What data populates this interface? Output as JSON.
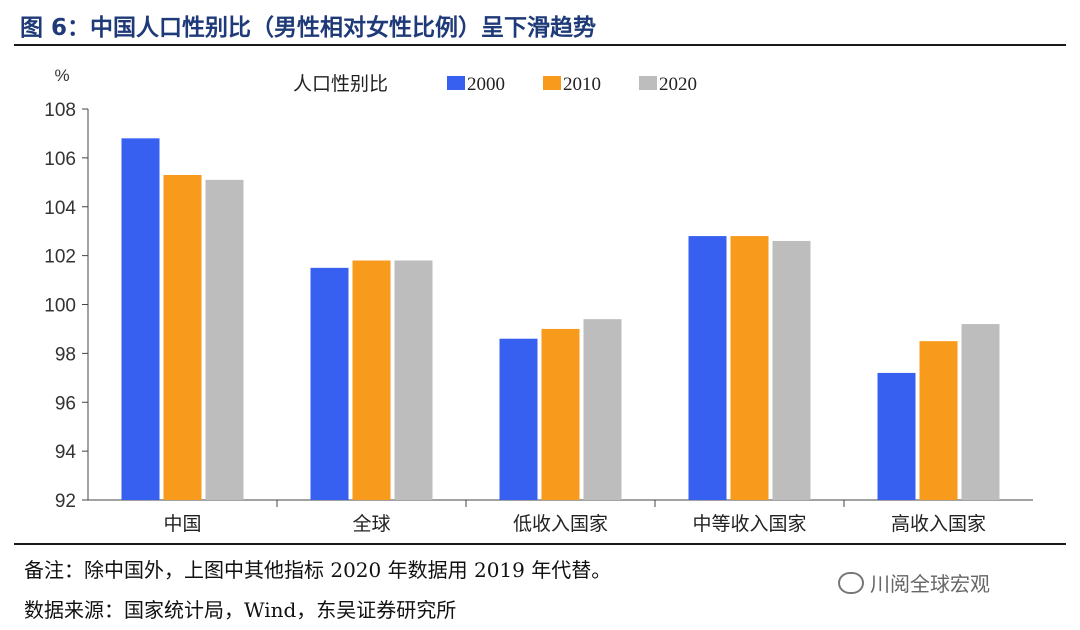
{
  "title": "图 6：中国人口性别比（男性相对女性比例）呈下滑趋势",
  "notes": {
    "remark": "备注：除中国外，上图中其他指标 2020 年数据用 2019 年代替。",
    "source": "数据来源：国家统计局，Wind，东吴证券研究所"
  },
  "watermark": "川阅全球宏观",
  "chart_data": {
    "type": "bar",
    "title": "人口性别比",
    "ylabel": "%",
    "xlabel": "",
    "ylim": [
      92,
      108
    ],
    "yticks": [
      92,
      94,
      96,
      98,
      100,
      102,
      104,
      106,
      108
    ],
    "categories": [
      "中国",
      "全球",
      "低收入国家",
      "中等收入国家",
      "高收入国家"
    ],
    "series": [
      {
        "name": "2000",
        "color": "#3860f0",
        "values": [
          106.8,
          101.5,
          98.6,
          102.8,
          97.2
        ]
      },
      {
        "name": "2010",
        "color": "#f89a1c",
        "values": [
          105.3,
          101.8,
          99.0,
          102.8,
          98.5
        ]
      },
      {
        "name": "2020",
        "color": "#bdbdbd",
        "values": [
          105.1,
          101.8,
          99.4,
          102.6,
          99.2
        ]
      }
    ],
    "legend_position": "top",
    "grid": false
  }
}
